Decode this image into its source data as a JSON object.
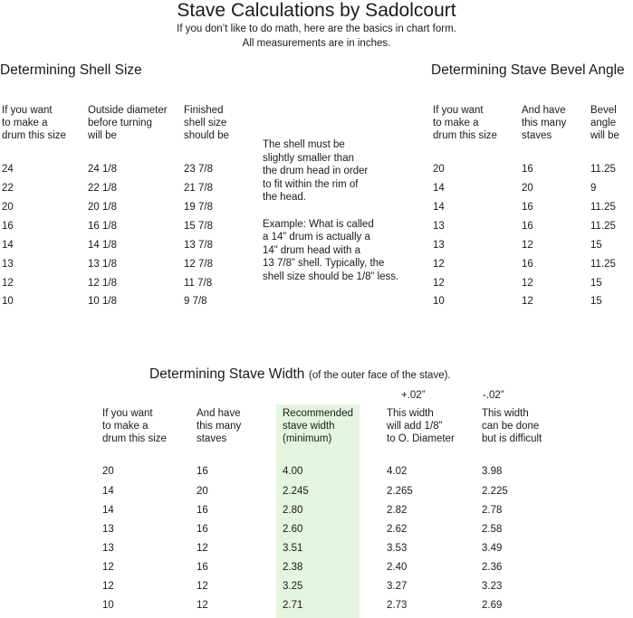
{
  "header": {
    "title": "Stave Calculations by Sadolcourt",
    "lines": [
      "If you don’t like to do math, here are the basics in chart form.",
      "All measurements are in inches."
    ]
  },
  "shell_size": {
    "heading": "Determining Shell Size",
    "columns": [
      [
        "If you want",
        "to make a",
        "drum this size"
      ],
      [
        "Outside diameter",
        "before turning",
        "will be"
      ],
      [
        "Finished",
        "shell size",
        "should be"
      ]
    ],
    "rows": [
      [
        "24",
        "24 1/8",
        "23 7/8"
      ],
      [
        "22",
        "22 1/8",
        "21 7/8"
      ],
      [
        "20",
        "20 1/8",
        "19 7/8"
      ],
      [
        "16",
        "16 1/8",
        "15 7/8"
      ],
      [
        "14",
        "14 1/8",
        "13 7/8"
      ],
      [
        "13",
        "13 1/8",
        "12 7/8"
      ],
      [
        "12",
        "12 1/8",
        "11 7/8"
      ],
      [
        "10",
        "10 1/8",
        "9 7/8"
      ]
    ]
  },
  "note": {
    "paragraphs": [
      [
        "The shell must be",
        "slightly smaller than",
        "the drum head in order",
        "to fit within the rim of",
        "the head."
      ],
      [
        "Example:  What is called",
        "a 14” drum is actually a",
        "14” drum head with a",
        "13 7/8” shell. Typically, the",
        "shell size should be 1/8” less."
      ]
    ]
  },
  "bevel": {
    "heading": "Determining Stave Bevel Angle",
    "columns": [
      [
        "If you want",
        "to make a",
        "drum this size"
      ],
      [
        "And have",
        "this many",
        "staves"
      ],
      [
        "Bevel",
        "angle",
        "will be"
      ]
    ],
    "rows": [
      [
        "20",
        "16",
        "11.25"
      ],
      [
        "14",
        "20",
        "9"
      ],
      [
        "14",
        "16",
        "11.25"
      ],
      [
        "13",
        "16",
        "11.25"
      ],
      [
        "13",
        "12",
        "15"
      ],
      [
        "12",
        "16",
        "11.25"
      ],
      [
        "12",
        "12",
        "15"
      ],
      [
        "10",
        "12",
        "15"
      ]
    ]
  },
  "width": {
    "heading": "Determining Stave Width",
    "heading_note": "(of the outer face of the stave).",
    "offsets": [
      "+.02”",
      "-.02”"
    ],
    "columns": [
      [
        "If you want",
        "to make a",
        "drum this size"
      ],
      [
        "And have",
        "this many",
        "staves"
      ],
      [
        "Recommended",
        "stave width",
        "(minimum)"
      ],
      [
        "This width",
        "will add 1/8”",
        "to O. Diameter"
      ],
      [
        "This width",
        "can be done",
        "but is difficult"
      ]
    ],
    "rows": [
      [
        "20",
        "16",
        "4.00",
        "4.02",
        "3.98"
      ],
      [
        "14",
        "20",
        "2.245",
        "2.265",
        "2.225"
      ],
      [
        "14",
        "16",
        "2.80",
        "2.82",
        "2.78"
      ],
      [
        "13",
        "16",
        "2.60",
        "2.62",
        "2.58"
      ],
      [
        "13",
        "12",
        "3.51",
        "3.53",
        "3.49"
      ],
      [
        "12",
        "16",
        "2.38",
        "2.40",
        "2.36"
      ],
      [
        "12",
        "12",
        "3.25",
        "3.27",
        "3.23"
      ],
      [
        "10",
        "12",
        "2.71",
        "2.73",
        "2.69"
      ]
    ]
  }
}
